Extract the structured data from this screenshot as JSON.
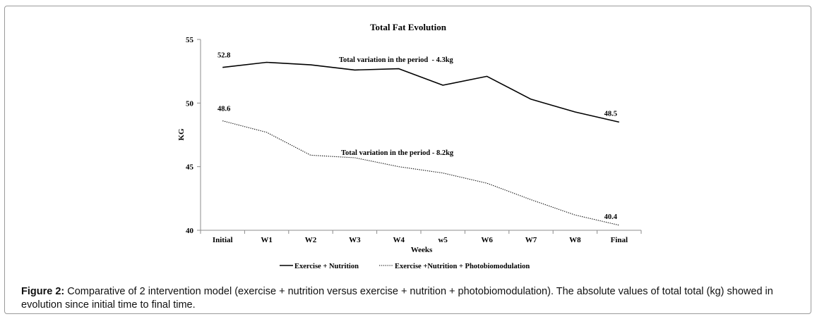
{
  "figure": {
    "caption_label": "Figure 2:",
    "caption_text": "Comparative of 2 intervention model (exercise + nutrition versus exercise + nutrition + photobiomodulation). The absolute values of total total (kg) showed in evolution since initial time to final time."
  },
  "chart_data": {
    "type": "line",
    "title": "Total Fat Evolution",
    "xlabel": "Weeks",
    "ylabel": "KG",
    "ylim": [
      40,
      55
    ],
    "yticks": [
      40,
      45,
      50,
      55
    ],
    "grid": false,
    "legend_position": "bottom",
    "categories": [
      "Initial",
      "W1",
      "W2",
      "W3",
      "W4",
      "w5",
      "W6",
      "W7",
      "W8",
      "Final"
    ],
    "series": [
      {
        "name": "Exercise + Nutrition",
        "style": "solid",
        "color": "#000000",
        "values": [
          52.8,
          53.2,
          53.0,
          52.6,
          52.7,
          51.4,
          52.1,
          50.3,
          49.3,
          48.5
        ]
      },
      {
        "name": "Exercise +Nutrition + Photobiomodulation",
        "style": "dotted",
        "color": "#000000",
        "values": [
          48.6,
          47.7,
          45.9,
          45.7,
          45.0,
          44.5,
          43.7,
          42.4,
          41.2,
          40.4
        ]
      }
    ],
    "data_labels": [
      {
        "series": 0,
        "index": 0,
        "text": "52.8"
      },
      {
        "series": 0,
        "index": 9,
        "text": "48.5"
      },
      {
        "series": 1,
        "index": 0,
        "text": "48.6"
      },
      {
        "series": 1,
        "index": 9,
        "text": "40.4"
      }
    ],
    "annotations": [
      {
        "series": 0,
        "text": "Total variation in the period  - 4.3kg"
      },
      {
        "series": 1,
        "text": "Total variation in the period - 8.2kg"
      }
    ]
  }
}
